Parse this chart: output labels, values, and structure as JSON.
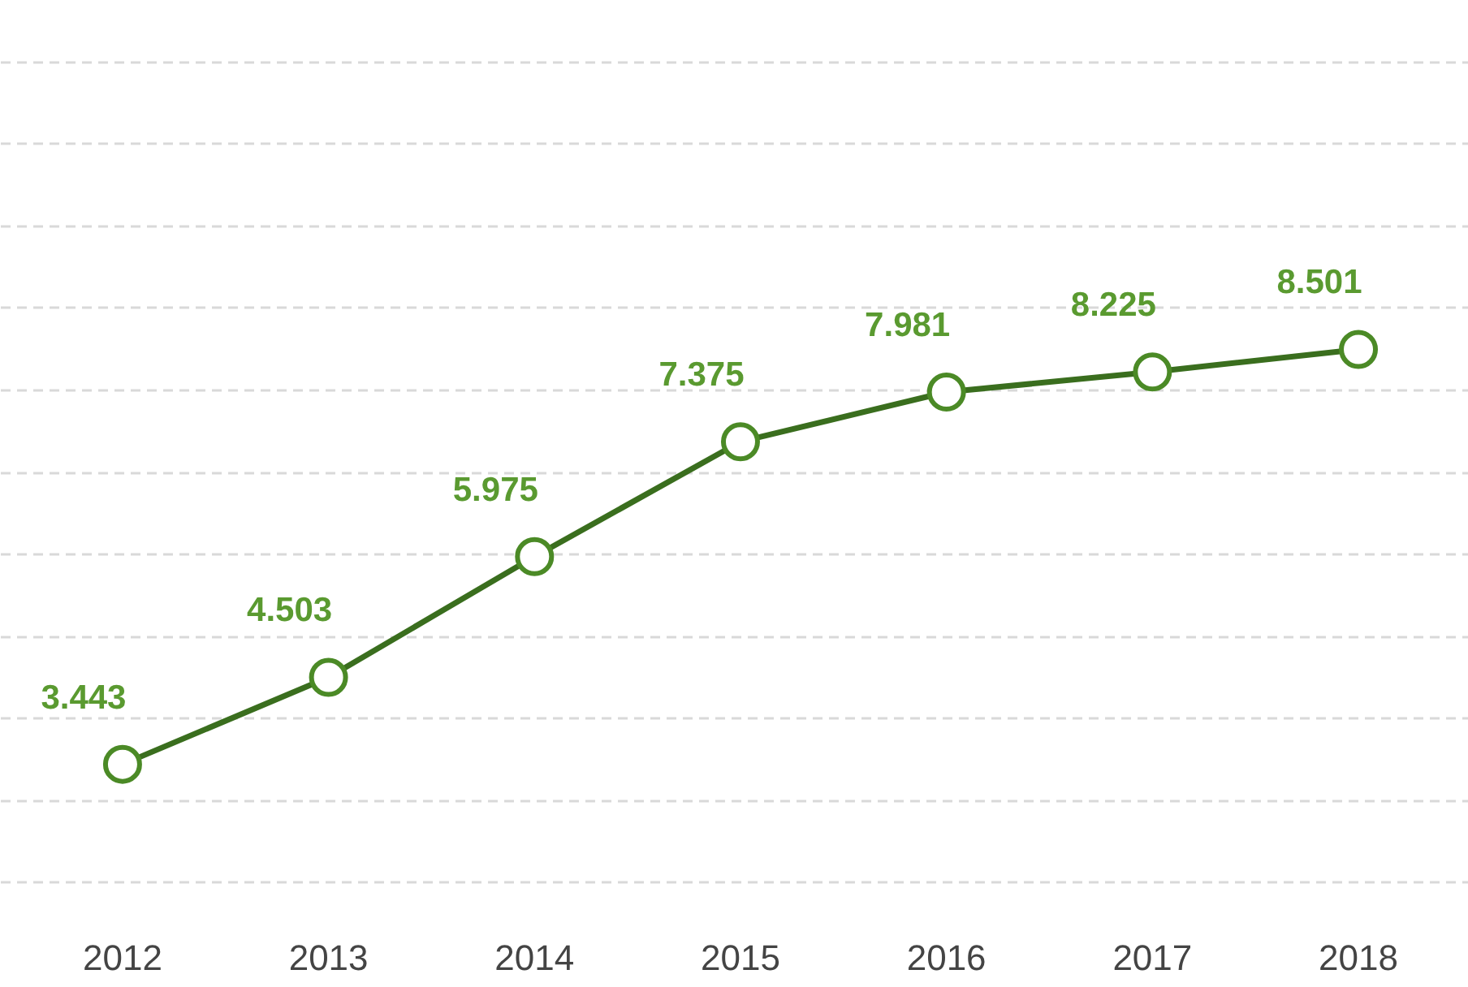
{
  "chart_data": {
    "type": "line",
    "categories": [
      "2012",
      "2013",
      "2014",
      "2015",
      "2016",
      "2017",
      "2018"
    ],
    "series": [
      {
        "color": "#3a6e1e",
        "values": [
          3.443,
          4.503,
          5.975,
          7.375,
          7.981,
          8.225,
          8.501
        ]
      }
    ],
    "grid": "y",
    "tick_labels": "x",
    "data_labels": true,
    "marker": "circle",
    "line_style": "solid"
  }
}
